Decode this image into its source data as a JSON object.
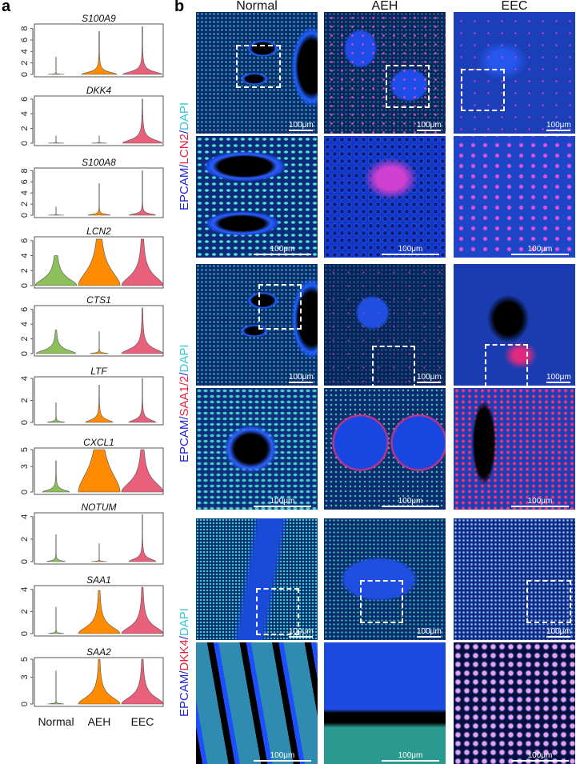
{
  "panel_a_label": "a",
  "panel_b_label": "b",
  "colors": {
    "Normal": "#8dc05a",
    "AEH": "#ff8c00",
    "EEC": "#e8607a"
  },
  "chart_data": {
    "type": "violin",
    "categories": [
      "Normal",
      "AEH",
      "EEC"
    ],
    "panels": [
      {
        "title": "S100A9",
        "ylim": [
          0,
          8.5
        ],
        "yticks": [
          0,
          2,
          4,
          6,
          8
        ],
        "groups": [
          {
            "max": 3.0,
            "bulk": 0.05
          },
          {
            "max": 7.5,
            "bulk": 0.5
          },
          {
            "max": 8.3,
            "bulk": 0.6
          }
        ]
      },
      {
        "title": "DKK4",
        "ylim": [
          0,
          6.2
        ],
        "yticks": [
          0,
          2,
          4,
          6
        ],
        "groups": [
          {
            "max": 1.0,
            "bulk": 0.03
          },
          {
            "max": 1.0,
            "bulk": 0.03
          },
          {
            "max": 6.0,
            "bulk": 0.6
          }
        ]
      },
      {
        "title": "S100A8",
        "ylim": [
          0,
          8.2
        ],
        "yticks": [
          0,
          2,
          4,
          6,
          8
        ],
        "groups": [
          {
            "max": 1.5,
            "bulk": 0.03
          },
          {
            "max": 5.7,
            "bulk": 0.2
          },
          {
            "max": 8.0,
            "bulk": 0.3
          }
        ]
      },
      {
        "title": "LCN2",
        "ylim": [
          0,
          6.3
        ],
        "yticks": [
          0,
          2,
          4,
          6
        ],
        "groups": [
          {
            "max": 4.0,
            "bulk": 1.2
          },
          {
            "max": 6.2,
            "bulk": 2.5
          },
          {
            "max": 6.2,
            "bulk": 1.6
          }
        ]
      },
      {
        "title": "CTS1",
        "ylim": [
          0,
          6.3
        ],
        "yticks": [
          0,
          2,
          4,
          6
        ],
        "groups": [
          {
            "max": 3.2,
            "bulk": 0.6
          },
          {
            "max": 3.0,
            "bulk": 0.1
          },
          {
            "max": 6.2,
            "bulk": 0.8
          }
        ]
      },
      {
        "title": "LTF",
        "ylim": [
          0,
          4.0
        ],
        "yticks": [
          0,
          2,
          4
        ],
        "groups": [
          {
            "max": 1.8,
            "bulk": 0.08
          },
          {
            "max": 3.4,
            "bulk": 0.3
          },
          {
            "max": 4.0,
            "bulk": 0.3
          }
        ]
      },
      {
        "title": "CXCL1",
        "ylim": [
          0,
          5.0
        ],
        "yticks": [
          0,
          3,
          5
        ],
        "groups": [
          {
            "max": 3.7,
            "bulk": 0.3
          },
          {
            "max": 5.0,
            "bulk": 3.0
          },
          {
            "max": 5.0,
            "bulk": 1.5
          }
        ]
      },
      {
        "title": "NOTUM",
        "ylim": [
          0,
          4.2
        ],
        "yticks": [
          0,
          2,
          4
        ],
        "groups": [
          {
            "max": 2.4,
            "bulk": 0.1
          },
          {
            "max": 1.6,
            "bulk": 0.03
          },
          {
            "max": 4.2,
            "bulk": 0.3
          }
        ]
      },
      {
        "title": "SAA1",
        "ylim": [
          0,
          4.2
        ],
        "yticks": [
          0,
          2,
          4
        ],
        "groups": [
          {
            "max": 2.4,
            "bulk": 0.05
          },
          {
            "max": 3.9,
            "bulk": 0.8
          },
          {
            "max": 4.2,
            "bulk": 0.8
          }
        ]
      },
      {
        "title": "SAA2",
        "ylim": [
          0,
          5.0
        ],
        "yticks": [
          0,
          3,
          5
        ],
        "groups": [
          {
            "max": 3.7,
            "bulk": 0.05
          },
          {
            "max": 5.0,
            "bulk": 1.0
          },
          {
            "max": 5.0,
            "bulk": 1.0
          }
        ]
      }
    ]
  },
  "panel_b": {
    "columns": [
      "Normal",
      "AEH",
      "EEC"
    ],
    "scale_bar": "100μm",
    "stain_groups": [
      {
        "marker": [
          {
            "text": "EPCAM",
            "color": "#2222dd"
          },
          {
            "text": "/",
            "color": "#2222dd"
          },
          {
            "text": "LCN2",
            "color": "#e8203a"
          },
          {
            "text": "/",
            "color": "#2222dd"
          },
          {
            "text": "DAPI",
            "color": "#33c8d8"
          }
        ]
      },
      {
        "marker": [
          {
            "text": "EPCAM",
            "color": "#2222dd"
          },
          {
            "text": "/",
            "color": "#2222dd"
          },
          {
            "text": "SAA1/2",
            "color": "#e8203a"
          },
          {
            "text": "/",
            "color": "#2222dd"
          },
          {
            "text": "DAPI",
            "color": "#33c8d8"
          }
        ]
      },
      {
        "marker": [
          {
            "text": "EPCAM",
            "color": "#2222dd"
          },
          {
            "text": "/",
            "color": "#2222dd"
          },
          {
            "text": "DKK4",
            "color": "#e8203a"
          },
          {
            "text": "/",
            "color": "#2222dd"
          },
          {
            "text": "DAPI",
            "color": "#33c8d8"
          }
        ]
      }
    ]
  }
}
